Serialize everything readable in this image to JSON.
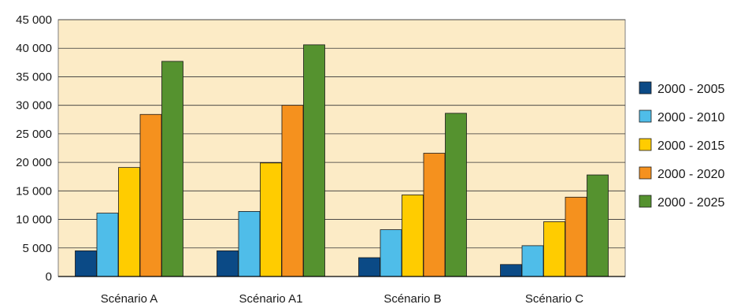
{
  "chart_data": {
    "type": "bar",
    "categories": [
      "Scénario A",
      "Scénario A1",
      "Scénario B",
      "Scénario C"
    ],
    "series": [
      {
        "name": "2000 - 2005",
        "color": "#0b4a86",
        "values": [
          4500,
          4500,
          3300,
          2100
        ]
      },
      {
        "name": "2000 - 2010",
        "color": "#4fbde9",
        "values": [
          11100,
          11400,
          8200,
          5400
        ]
      },
      {
        "name": "2000 - 2015",
        "color": "#ffcc00",
        "values": [
          19100,
          19900,
          14300,
          9600
        ]
      },
      {
        "name": "2000 - 2020",
        "color": "#f5911e",
        "values": [
          28400,
          30000,
          21600,
          13900
        ]
      },
      {
        "name": "2000 - 2025",
        "color": "#55922f",
        "values": [
          37700,
          40600,
          28600,
          17800
        ]
      }
    ],
    "yticks": [
      "0",
      "5 000",
      "10 000",
      "15 000",
      "20 000",
      "25 000",
      "30 000",
      "35 000",
      "40 000",
      "45 000"
    ],
    "ylim": [
      0,
      45000
    ],
    "grid": true,
    "legend_position": "right",
    "plot_background": "#fcebc6"
  }
}
